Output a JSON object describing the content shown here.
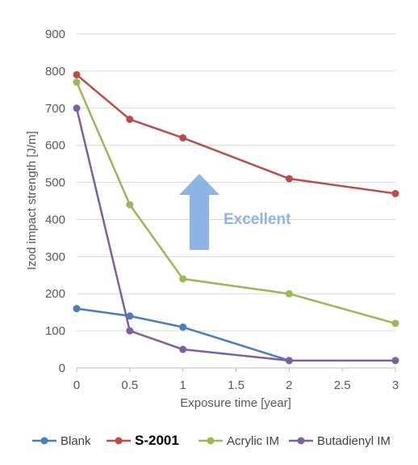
{
  "chart_data": {
    "type": "line",
    "xlabel": "Exposure time [year]",
    "ylabel": "Izod impact strength [J/m]",
    "xlim": [
      0,
      3
    ],
    "ylim": [
      0,
      900
    ],
    "x_ticks": [
      "0",
      "0.5",
      "1",
      "1.5",
      "2",
      "2.5",
      "3"
    ],
    "y_ticks": [
      "0",
      "100",
      "200",
      "300",
      "400",
      "500",
      "600",
      "700",
      "800",
      "900"
    ],
    "grid": "horizontal",
    "legend_position": "bottom",
    "series": [
      {
        "name": "Blank",
        "color": "#4a7ebb",
        "bold": false,
        "points": [
          [
            0,
            160
          ],
          [
            0.5,
            140
          ],
          [
            1,
            110
          ],
          [
            2,
            20
          ]
        ]
      },
      {
        "name": "S-2001",
        "color": "#be4b48",
        "bold": true,
        "points": [
          [
            0,
            790
          ],
          [
            0.5,
            670
          ],
          [
            1,
            620
          ],
          [
            2,
            510
          ],
          [
            3,
            470
          ]
        ]
      },
      {
        "name": "Acrylic IM",
        "color": "#98b954",
        "bold": false,
        "points": [
          [
            0,
            770
          ],
          [
            0.5,
            440
          ],
          [
            1,
            240
          ],
          [
            2,
            200
          ],
          [
            3,
            120
          ]
        ]
      },
      {
        "name": "Butadienyl IM",
        "color": "#7d60a0",
        "bold": false,
        "points": [
          [
            0,
            700
          ],
          [
            0.5,
            100
          ],
          [
            1,
            50
          ],
          [
            2,
            20
          ],
          [
            3,
            20
          ]
        ]
      }
    ],
    "annotation": {
      "text": "Excellent",
      "color": "#8eb4e3",
      "arrow": "up"
    }
  }
}
